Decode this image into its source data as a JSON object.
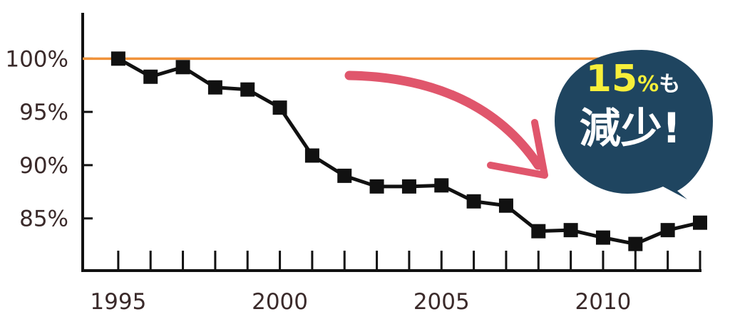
{
  "chart_data": {
    "type": "line",
    "x": [
      1995,
      1996,
      1997,
      1998,
      1999,
      2000,
      2001,
      2002,
      2003,
      2004,
      2005,
      2006,
      2007,
      2008,
      2009,
      2010,
      2011,
      2012,
      2013
    ],
    "values": [
      100,
      98.3,
      99.2,
      97.3,
      97.1,
      95.4,
      90.9,
      89.0,
      88.0,
      88.0,
      88.1,
      86.6,
      86.2,
      83.8,
      83.9,
      83.2,
      82.6,
      83.9,
      84.6
    ],
    "xticks": [
      "1995",
      "2000",
      "2005",
      "2010"
    ],
    "yticks": [
      "100%",
      "95%",
      "90%",
      "85%"
    ],
    "ytick_values": [
      100,
      95,
      90,
      85
    ],
    "xlim": [
      1993.9,
      2013.0
    ],
    "ylim": [
      80.1,
      104.3
    ],
    "reference_line": {
      "value": 100,
      "color": "#f0923a"
    },
    "line_color": "#111111",
    "grid": false,
    "title": "",
    "xlabel": "",
    "ylabel": ""
  },
  "annotation": {
    "line1_number": "15",
    "line1_percent": "%",
    "line1_suffix": "も",
    "line2": "減少!",
    "bubble_color": "#1f4560",
    "number_color": "#f7ef3a",
    "text_color": "#ffffff",
    "arrow_color": "#e0566c"
  }
}
